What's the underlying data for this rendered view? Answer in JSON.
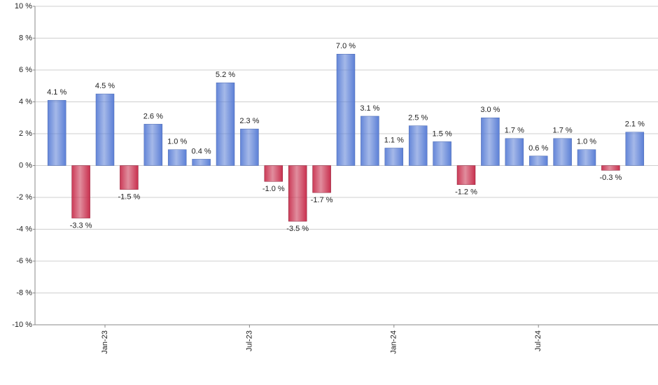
{
  "chart_data": {
    "type": "bar",
    "categories": [
      null,
      null,
      "Jan-23",
      null,
      null,
      null,
      null,
      null,
      "Jul-23",
      null,
      null,
      null,
      null,
      null,
      "Jan-24",
      null,
      null,
      null,
      null,
      null,
      "Jul-24",
      null,
      null,
      null,
      null
    ],
    "values": [
      4.1,
      -3.3,
      4.5,
      -1.5,
      2.6,
      1.0,
      0.4,
      5.2,
      2.3,
      -1.0,
      -3.5,
      -1.7,
      7.0,
      3.1,
      1.1,
      2.5,
      1.5,
      -1.2,
      3.0,
      1.7,
      0.6,
      1.7,
      1.0,
      -0.3,
      2.1
    ],
    "value_labels": [
      "4.1 %",
      "-3.3 %",
      "4.5 %",
      "-1.5 %",
      "2.6 %",
      "1.0 %",
      "0.4 %",
      "5.2 %",
      "2.3 %",
      "-1.0 %",
      "-3.5 %",
      "-1.7 %",
      "7.0 %",
      "3.1 %",
      "1.1 %",
      "2.5 %",
      "1.5 %",
      "-1.2 %",
      "3.0 %",
      "1.7 %",
      "0.6 %",
      "1.7 %",
      "1.0 %",
      "-0.3 %",
      "2.1 %"
    ],
    "positive_color": "#5b7fd6",
    "negative_color": "#c8304e",
    "ylim": [
      -10,
      10
    ],
    "yticks": [
      {
        "value": -10,
        "label": "-10 %"
      },
      {
        "value": -8,
        "label": "-8 %"
      },
      {
        "value": -6,
        "label": "-6 %"
      },
      {
        "value": -4,
        "label": "-4 %"
      },
      {
        "value": -2,
        "label": "-2 %"
      },
      {
        "value": 0,
        "label": "0 %"
      },
      {
        "value": 2,
        "label": "2 %"
      },
      {
        "value": 4,
        "label": "4 %"
      },
      {
        "value": 6,
        "label": "6 %"
      },
      {
        "value": 8,
        "label": "8 %"
      },
      {
        "value": 10,
        "label": "10 %"
      }
    ],
    "grid": true
  }
}
